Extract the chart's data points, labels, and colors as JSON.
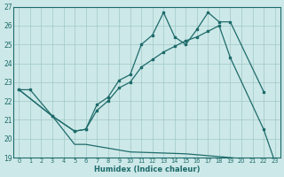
{
  "xlabel": "Humidex (Indice chaleur)",
  "xlim": [
    -0.5,
    23.5
  ],
  "ylim": [
    19,
    27
  ],
  "yticks": [
    19,
    20,
    21,
    22,
    23,
    24,
    25,
    26,
    27
  ],
  "xticks": [
    0,
    1,
    2,
    3,
    4,
    5,
    6,
    7,
    8,
    9,
    10,
    11,
    12,
    13,
    14,
    15,
    16,
    17,
    18,
    19,
    20,
    21,
    22,
    23
  ],
  "background_color": "#cde8e8",
  "grid_color": "#a0c8c8",
  "line_color": "#1e6b6b",
  "line1": {
    "x": [
      0,
      1,
      3,
      5,
      6,
      7,
      8,
      9,
      10,
      11,
      12,
      13,
      14,
      15,
      16,
      17,
      18,
      19,
      22
    ],
    "y": [
      22.6,
      22.6,
      21.2,
      20.4,
      20.5,
      21.8,
      22.2,
      23.1,
      23.4,
      25.0,
      25.5,
      26.7,
      25.4,
      25.0,
      25.8,
      26.7,
      26.2,
      26.2,
      22.5
    ]
  },
  "line2": {
    "x": [
      0,
      3,
      5,
      6,
      7,
      8,
      9,
      10,
      11,
      12,
      13,
      14,
      15,
      16,
      17,
      18,
      19,
      22,
      23
    ],
    "y": [
      22.6,
      21.2,
      20.4,
      20.5,
      21.5,
      22.0,
      22.7,
      23.0,
      23.8,
      24.2,
      24.6,
      24.9,
      25.2,
      25.4,
      25.7,
      26.0,
      24.3,
      20.5,
      18.8
    ]
  },
  "line3": {
    "x": [
      0,
      3,
      5,
      6,
      10,
      15,
      19,
      22,
      23
    ],
    "y": [
      22.6,
      21.2,
      19.7,
      19.7,
      19.3,
      19.2,
      19.0,
      18.8,
      18.7
    ]
  }
}
